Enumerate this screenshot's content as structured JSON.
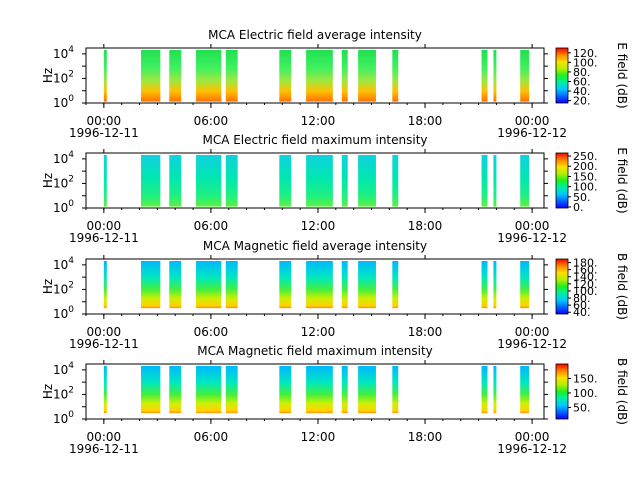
{
  "chart_data": [
    {
      "type": "heatmap",
      "title": "MCA  Electric field average intensity",
      "ylabel": "Hz",
      "y_scale": "log",
      "ylim": [
        1,
        30000
      ],
      "y_ticks": [
        {
          "v": 1,
          "b": "10",
          "e": "0"
        },
        {
          "v": 100,
          "b": "10",
          "e": "2"
        },
        {
          "v": 10000,
          "b": "10",
          "e": "4"
        }
      ],
      "x_ticks": [
        {
          "t": "1996-12-11 00:00",
          "time": "00:00",
          "date": "1996-12-11"
        },
        {
          "t": "1996-12-11 06:00",
          "time": "06:00",
          "date": ""
        },
        {
          "t": "1996-12-11 12:00",
          "time": "12:00",
          "date": ""
        },
        {
          "t": "1996-12-11 18:00",
          "time": "18:00",
          "date": ""
        },
        {
          "t": "1996-12-12 00:00",
          "time": "00:00",
          "date": "1996-12-12"
        }
      ],
      "xlim": [
        "1996-12-10 23:00",
        "1996-12-12 00:40"
      ],
      "colorbar": {
        "label": "E field (dB)",
        "ticks": [
          "20.",
          "40.",
          "60.",
          "80.",
          "100.",
          "120."
        ],
        "range": [
          15,
          130
        ]
      },
      "palette": "green",
      "data_intervals": [
        [
          "1996-12-11 00:00",
          "1996-12-11 00:10"
        ],
        [
          "1996-12-11 02:05",
          "1996-12-11 03:10"
        ],
        [
          "1996-12-11 03:40",
          "1996-12-11 04:20"
        ],
        [
          "1996-12-11 05:10",
          "1996-12-11 06:35"
        ],
        [
          "1996-12-11 06:50",
          "1996-12-11 07:30"
        ],
        [
          "1996-12-11 09:50",
          "1996-12-11 10:30"
        ],
        [
          "1996-12-11 11:20",
          "1996-12-11 12:50"
        ],
        [
          "1996-12-11 13:20",
          "1996-12-11 13:40"
        ],
        [
          "1996-12-11 14:15",
          "1996-12-11 15:15"
        ],
        [
          "1996-12-11 16:10",
          "1996-12-11 16:30"
        ],
        [
          "1996-12-11 21:10",
          "1996-12-11 21:30"
        ],
        [
          "1996-12-11 21:50",
          "1996-12-11 22:00"
        ],
        [
          "1996-12-11 23:20",
          "1996-12-11 23:50"
        ]
      ]
    },
    {
      "type": "heatmap",
      "title": "MCA  Electric field maximum intensity",
      "ylabel": "Hz",
      "y_scale": "log",
      "ylim": [
        1,
        30000
      ],
      "y_ticks": [
        {
          "v": 1,
          "b": "10",
          "e": "0"
        },
        {
          "v": 100,
          "b": "10",
          "e": "2"
        },
        {
          "v": 10000,
          "b": "10",
          "e": "4"
        }
      ],
      "x_ticks": [
        {
          "t": "1996-12-11 00:00",
          "time": "00:00",
          "date": "1996-12-11"
        },
        {
          "t": "1996-12-11 06:00",
          "time": "06:00",
          "date": ""
        },
        {
          "t": "1996-12-11 12:00",
          "time": "12:00",
          "date": ""
        },
        {
          "t": "1996-12-11 18:00",
          "time": "18:00",
          "date": ""
        },
        {
          "t": "1996-12-12 00:00",
          "time": "00:00",
          "date": "1996-12-12"
        }
      ],
      "xlim": [
        "1996-12-10 23:00",
        "1996-12-12 00:40"
      ],
      "colorbar": {
        "label": "E field (dB)",
        "ticks": [
          "0.",
          "50.",
          "100.",
          "150.",
          "200.",
          "250."
        ],
        "range": [
          -5,
          265
        ]
      },
      "palette": "cyan",
      "data_intervals": [
        [
          "1996-12-11 00:00",
          "1996-12-11 00:10"
        ],
        [
          "1996-12-11 02:05",
          "1996-12-11 03:10"
        ],
        [
          "1996-12-11 03:40",
          "1996-12-11 04:20"
        ],
        [
          "1996-12-11 05:10",
          "1996-12-11 06:35"
        ],
        [
          "1996-12-11 06:50",
          "1996-12-11 07:30"
        ],
        [
          "1996-12-11 09:50",
          "1996-12-11 10:30"
        ],
        [
          "1996-12-11 11:20",
          "1996-12-11 12:50"
        ],
        [
          "1996-12-11 13:20",
          "1996-12-11 13:40"
        ],
        [
          "1996-12-11 14:15",
          "1996-12-11 15:15"
        ],
        [
          "1996-12-11 16:10",
          "1996-12-11 16:30"
        ],
        [
          "1996-12-11 21:10",
          "1996-12-11 21:30"
        ],
        [
          "1996-12-11 21:50",
          "1996-12-11 22:00"
        ],
        [
          "1996-12-11 23:20",
          "1996-12-11 23:50"
        ]
      ]
    },
    {
      "type": "heatmap",
      "title": "MCA  Magnetic field average intensity",
      "ylabel": "Hz",
      "y_scale": "log",
      "ylim": [
        1,
        30000
      ],
      "y_ticks": [
        {
          "v": 1,
          "b": "10",
          "e": "0"
        },
        {
          "v": 100,
          "b": "10",
          "e": "2"
        },
        {
          "v": 10000,
          "b": "10",
          "e": "4"
        }
      ],
      "x_ticks": [
        {
          "t": "1996-12-11 00:00",
          "time": "00:00",
          "date": "1996-12-11"
        },
        {
          "t": "1996-12-11 06:00",
          "time": "06:00",
          "date": ""
        },
        {
          "t": "1996-12-11 12:00",
          "time": "12:00",
          "date": ""
        },
        {
          "t": "1996-12-11 18:00",
          "time": "18:00",
          "date": ""
        },
        {
          "t": "1996-12-12 00:00",
          "time": "00:00",
          "date": "1996-12-12"
        }
      ],
      "xlim": [
        "1996-12-10 23:00",
        "1996-12-12 00:40"
      ],
      "colorbar": {
        "label": "B field (dB)",
        "ticks": [
          "40.",
          "60.",
          "80.",
          "100.",
          "120.",
          "140.",
          "160.",
          "180."
        ],
        "range": [
          35,
          190
        ]
      },
      "palette": "bfield",
      "data_intervals": [
        [
          "1996-12-11 00:00",
          "1996-12-11 00:10"
        ],
        [
          "1996-12-11 02:05",
          "1996-12-11 03:10"
        ],
        [
          "1996-12-11 03:40",
          "1996-12-11 04:20"
        ],
        [
          "1996-12-11 05:10",
          "1996-12-11 06:35"
        ],
        [
          "1996-12-11 06:50",
          "1996-12-11 07:30"
        ],
        [
          "1996-12-11 09:50",
          "1996-12-11 10:30"
        ],
        [
          "1996-12-11 11:20",
          "1996-12-11 12:50"
        ],
        [
          "1996-12-11 13:20",
          "1996-12-11 13:40"
        ],
        [
          "1996-12-11 14:15",
          "1996-12-11 15:15"
        ],
        [
          "1996-12-11 16:10",
          "1996-12-11 16:30"
        ],
        [
          "1996-12-11 21:10",
          "1996-12-11 21:30"
        ],
        [
          "1996-12-11 21:50",
          "1996-12-11 22:00"
        ],
        [
          "1996-12-11 23:20",
          "1996-12-11 23:50"
        ]
      ]
    },
    {
      "type": "heatmap",
      "title": "MCA  Magnetic field maximum intensity",
      "ylabel": "Hz",
      "y_scale": "log",
      "ylim": [
        1,
        30000
      ],
      "y_ticks": [
        {
          "v": 1,
          "b": "10",
          "e": "0"
        },
        {
          "v": 100,
          "b": "10",
          "e": "2"
        },
        {
          "v": 10000,
          "b": "10",
          "e": "4"
        }
      ],
      "x_ticks": [
        {
          "t": "1996-12-11 00:00",
          "time": "00:00",
          "date": "1996-12-11"
        },
        {
          "t": "1996-12-11 06:00",
          "time": "06:00",
          "date": ""
        },
        {
          "t": "1996-12-11 12:00",
          "time": "12:00",
          "date": ""
        },
        {
          "t": "1996-12-11 18:00",
          "time": "18:00",
          "date": ""
        },
        {
          "t": "1996-12-12 00:00",
          "time": "00:00",
          "date": "1996-12-12"
        }
      ],
      "xlim": [
        "1996-12-10 23:00",
        "1996-12-12 00:40"
      ],
      "colorbar": {
        "label": "B field (dB)",
        "ticks": [
          "50.",
          "100.",
          "150."
        ],
        "range": [
          10,
          200
        ]
      },
      "palette": "bfield",
      "data_intervals": [
        [
          "1996-12-11 00:00",
          "1996-12-11 00:10"
        ],
        [
          "1996-12-11 02:05",
          "1996-12-11 03:10"
        ],
        [
          "1996-12-11 03:40",
          "1996-12-11 04:20"
        ],
        [
          "1996-12-11 05:10",
          "1996-12-11 06:35"
        ],
        [
          "1996-12-11 06:50",
          "1996-12-11 07:30"
        ],
        [
          "1996-12-11 09:50",
          "1996-12-11 10:30"
        ],
        [
          "1996-12-11 11:20",
          "1996-12-11 12:50"
        ],
        [
          "1996-12-11 13:20",
          "1996-12-11 13:40"
        ],
        [
          "1996-12-11 14:15",
          "1996-12-11 15:15"
        ],
        [
          "1996-12-11 16:10",
          "1996-12-11 16:30"
        ],
        [
          "1996-12-11 21:10",
          "1996-12-11 21:30"
        ],
        [
          "1996-12-11 21:50",
          "1996-12-11 22:00"
        ],
        [
          "1996-12-11 23:20",
          "1996-12-11 23:50"
        ]
      ]
    }
  ]
}
